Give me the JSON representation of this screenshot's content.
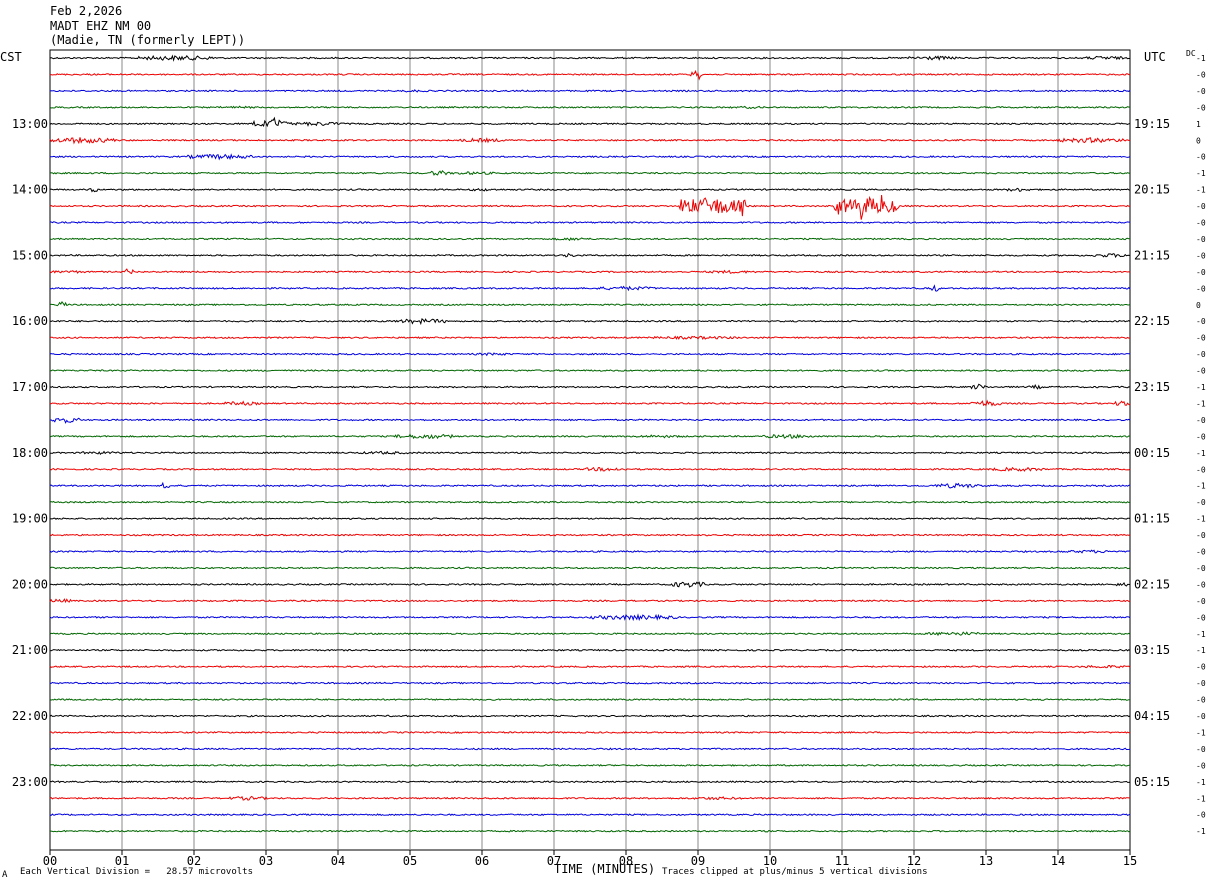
{
  "header": {
    "date": "Feb 2,2026",
    "station": "MADT EHZ NM 00",
    "location": "(Madie, TN (formerly LEPT))"
  },
  "left_timezone": "CST",
  "right_timezone": "UTC",
  "dc_label": "DC",
  "footer": {
    "scale_note": "Each Vertical Division =   28.57 microvolts",
    "clip_note": "Traces clipped at plus/minus 5 vertical divisions",
    "corner_mark": "A"
  },
  "colors": {
    "trace_cycle": [
      "#000000",
      "#ee0000",
      "#0000dd",
      "#006600"
    ],
    "grid": "#888888"
  },
  "chart_data": {
    "type": "helicorder",
    "xlabel": "TIME (MINUTES)",
    "x_ticks": [
      "00",
      "01",
      "02",
      "03",
      "04",
      "05",
      "06",
      "07",
      "08",
      "09",
      "10",
      "11",
      "12",
      "13",
      "14",
      "15"
    ],
    "xlim": [
      0,
      15
    ],
    "minutes_per_line": 15,
    "line_count": 48,
    "left_hour_labels": [
      {
        "line": 4,
        "label": "13:00"
      },
      {
        "line": 8,
        "label": "14:00"
      },
      {
        "line": 12,
        "label": "15:00"
      },
      {
        "line": 16,
        "label": "16:00"
      },
      {
        "line": 20,
        "label": "17:00"
      },
      {
        "line": 24,
        "label": "18:00"
      },
      {
        "line": 28,
        "label": "19:00"
      },
      {
        "line": 32,
        "label": "20:00"
      },
      {
        "line": 36,
        "label": "21:00"
      },
      {
        "line": 40,
        "label": "22:00"
      },
      {
        "line": 44,
        "label": "23:00"
      }
    ],
    "right_hour_labels": [
      {
        "line": 4,
        "label": "19:15"
      },
      {
        "line": 8,
        "label": "20:15"
      },
      {
        "line": 12,
        "label": "21:15"
      },
      {
        "line": 16,
        "label": "22:15"
      },
      {
        "line": 20,
        "label": "23:15"
      },
      {
        "line": 24,
        "label": "00:15"
      },
      {
        "line": 28,
        "label": "01:15"
      },
      {
        "line": 32,
        "label": "02:15"
      },
      {
        "line": 36,
        "label": "03:15"
      },
      {
        "line": 40,
        "label": "04:15"
      },
      {
        "line": 44,
        "label": "05:15"
      }
    ],
    "dc_offsets": [
      "-1",
      "-0",
      "-0",
      "-0",
      "1",
      "0",
      "-0",
      "-1",
      "-1",
      "-0",
      "-0",
      "-0",
      "-0",
      "-0",
      "-0",
      "0",
      "-0",
      "-0",
      "-0",
      "-0",
      "-1",
      "-1",
      "-0",
      "-0",
      "-1",
      "-0",
      "-1",
      "-0",
      "-1",
      "-0",
      "-0",
      "-0",
      "-0",
      "-0",
      "-0",
      "-1",
      "-1",
      "-0",
      "-0",
      "-0",
      "-0",
      "-1",
      "-0",
      "-0",
      "-1",
      "-1",
      "-0",
      "-1"
    ],
    "events": [
      {
        "line": 0,
        "start": 1.2,
        "end": 2.3,
        "amp": 2.5
      },
      {
        "line": 0,
        "start": 11.9,
        "end": 12.6,
        "amp": 2.0
      },
      {
        "line": 0,
        "start": 14.4,
        "end": 14.9,
        "amp": 2.0
      },
      {
        "line": 1,
        "start": 8.9,
        "end": 9.05,
        "amp": 4.0
      },
      {
        "line": 2,
        "start": 4.8,
        "end": 5.3,
        "amp": 1.2
      },
      {
        "line": 3,
        "start": 2.3,
        "end": 2.9,
        "amp": 1.2
      },
      {
        "line": 3,
        "start": 9.4,
        "end": 10.0,
        "amp": 1.2
      },
      {
        "line": 4,
        "start": 2.8,
        "end": 3.3,
        "amp": 4.0
      },
      {
        "line": 4,
        "start": 3.3,
        "end": 4.1,
        "amp": 2.0
      },
      {
        "line": 5,
        "start": 0.0,
        "end": 0.9,
        "amp": 3.0
      },
      {
        "line": 5,
        "start": 5.7,
        "end": 6.3,
        "amp": 2.0
      },
      {
        "line": 5,
        "start": 14.0,
        "end": 14.9,
        "amp": 2.5
      },
      {
        "line": 6,
        "start": 1.9,
        "end": 2.8,
        "amp": 2.5
      },
      {
        "line": 7,
        "start": 5.3,
        "end": 5.5,
        "amp": 3.0
      },
      {
        "line": 7,
        "start": 5.5,
        "end": 6.2,
        "amp": 1.5
      },
      {
        "line": 8,
        "start": 0.55,
        "end": 0.65,
        "amp": 3.0
      },
      {
        "line": 8,
        "start": 5.8,
        "end": 6.2,
        "amp": 1.5
      },
      {
        "line": 8,
        "start": 13.3,
        "end": 13.6,
        "amp": 2.0
      },
      {
        "line": 9,
        "start": 8.75,
        "end": 9.65,
        "amp": 9.0
      },
      {
        "line": 9,
        "start": 10.9,
        "end": 11.8,
        "amp": 9.0
      },
      {
        "line": 11,
        "start": 7.0,
        "end": 7.5,
        "amp": 1.5
      },
      {
        "line": 12,
        "start": 7.1,
        "end": 7.3,
        "amp": 2.0
      },
      {
        "line": 12,
        "start": 14.5,
        "end": 15.0,
        "amp": 2.0
      },
      {
        "line": 13,
        "start": 0.0,
        "end": 0.5,
        "amp": 1.5
      },
      {
        "line": 13,
        "start": 1.05,
        "end": 1.15,
        "amp": 4.0
      },
      {
        "line": 13,
        "start": 9.1,
        "end": 9.8,
        "amp": 1.5
      },
      {
        "line": 14,
        "start": 7.6,
        "end": 8.4,
        "amp": 2.0
      },
      {
        "line": 14,
        "start": 12.25,
        "end": 12.35,
        "amp": 4.0
      },
      {
        "line": 15,
        "start": 0.1,
        "end": 0.25,
        "amp": 3.0
      },
      {
        "line": 16,
        "start": 4.8,
        "end": 5.5,
        "amp": 2.5
      },
      {
        "line": 17,
        "start": 8.3,
        "end": 9.6,
        "amp": 1.5
      },
      {
        "line": 18,
        "start": 5.9,
        "end": 6.4,
        "amp": 1.5
      },
      {
        "line": 20,
        "start": 12.8,
        "end": 13.0,
        "amp": 3.0
      },
      {
        "line": 20,
        "start": 13.6,
        "end": 13.8,
        "amp": 2.0
      },
      {
        "line": 21,
        "start": 2.4,
        "end": 2.9,
        "amp": 2.0
      },
      {
        "line": 21,
        "start": 12.8,
        "end": 13.2,
        "amp": 3.0
      },
      {
        "line": 21,
        "start": 14.8,
        "end": 15.0,
        "amp": 3.0
      },
      {
        "line": 22,
        "start": 0.0,
        "end": 0.4,
        "amp": 3.0
      },
      {
        "line": 23,
        "start": 4.8,
        "end": 5.6,
        "amp": 2.5
      },
      {
        "line": 23,
        "start": 8.1,
        "end": 8.8,
        "amp": 1.5
      },
      {
        "line": 23,
        "start": 9.9,
        "end": 10.6,
        "amp": 2.0
      },
      {
        "line": 24,
        "start": 0.4,
        "end": 1.0,
        "amp": 1.5
      },
      {
        "line": 24,
        "start": 4.3,
        "end": 5.0,
        "amp": 1.5
      },
      {
        "line": 25,
        "start": 7.4,
        "end": 8.0,
        "amp": 2.0
      },
      {
        "line": 25,
        "start": 13.1,
        "end": 13.8,
        "amp": 2.0
      },
      {
        "line": 26,
        "start": 1.55,
        "end": 1.65,
        "amp": 4.0
      },
      {
        "line": 26,
        "start": 12.3,
        "end": 12.9,
        "amp": 2.5
      },
      {
        "line": 30,
        "start": 14.0,
        "end": 14.9,
        "amp": 1.5
      },
      {
        "line": 32,
        "start": 8.6,
        "end": 9.1,
        "amp": 3.0
      },
      {
        "line": 32,
        "start": 14.8,
        "end": 15.0,
        "amp": 2.0
      },
      {
        "line": 33,
        "start": 0.0,
        "end": 0.3,
        "amp": 2.0
      },
      {
        "line": 34,
        "start": 7.5,
        "end": 8.7,
        "amp": 2.5
      },
      {
        "line": 35,
        "start": 12.2,
        "end": 12.9,
        "amp": 2.0
      },
      {
        "line": 37,
        "start": 14.3,
        "end": 15.0,
        "amp": 1.5
      },
      {
        "line": 45,
        "start": 2.5,
        "end": 3.0,
        "amp": 2.0
      },
      {
        "line": 45,
        "start": 8.9,
        "end": 9.6,
        "amp": 1.5
      }
    ]
  }
}
